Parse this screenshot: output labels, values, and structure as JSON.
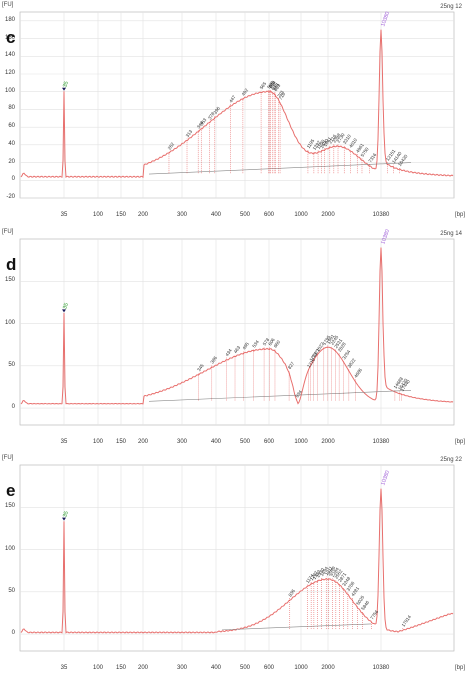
{
  "colors": {
    "trace": "#e8706e",
    "peak_line": "#e03a3a",
    "label": "#333333",
    "lower_marker": "#2a9a2a",
    "upper_marker": "#a060d8",
    "grid": "#e2e2e2"
  },
  "chart_data": [
    {
      "type": "line",
      "panel_label": "c",
      "y_unit_label": "[FU]",
      "x_unit_label": "[bp]",
      "sample": "25ng 12",
      "ylim": [
        -20,
        190
      ],
      "yticks": [
        -20,
        0,
        20,
        40,
        60,
        80,
        100,
        120,
        140,
        160,
        180
      ],
      "xticks": [
        "35",
        "100",
        "150",
        "200",
        "300",
        "400",
        "500",
        "600",
        "1000",
        "2000",
        "10380"
      ],
      "grid": true,
      "markers": {
        "lower": {
          "x": "35",
          "label": "35",
          "height": 100
        },
        "upper": {
          "x": "10380",
          "label": "10380",
          "height": 170
        }
      },
      "smear": {
        "start": "200",
        "peak_x": "600",
        "peak_y": 100,
        "end": "1000",
        "second_peak_x": "2000",
        "second_peak_y": 42
      },
      "baseline_fu": 4,
      "peak_labels": [
        "262",
        "313",
        "344",
        "353",
        "378",
        "396",
        "447",
        "492",
        "565",
        "598",
        "608",
        "614",
        "635",
        "651",
        "663",
        "701",
        "716",
        "1195",
        "1392",
        "1550",
        "1690",
        "1841",
        "2116",
        "2398",
        "2730",
        "3310",
        "4010",
        "4961",
        "5750",
        "7316",
        "12151",
        "14140",
        "16420"
      ]
    },
    {
      "type": "line",
      "panel_label": "d",
      "y_unit_label": "[FU]",
      "x_unit_label": "[bp]",
      "sample": "25ng 14",
      "ylim": [
        -20,
        200
      ],
      "yticks": [
        0,
        50,
        100,
        150
      ],
      "xticks": [
        "35",
        "100",
        "150",
        "200",
        "300",
        "400",
        "500",
        "600",
        "1000",
        "2000",
        "10380"
      ],
      "grid": true,
      "markers": {
        "lower": {
          "x": "35",
          "label": "35",
          "height": 112
        },
        "upper": {
          "x": "10380",
          "label": "10380",
          "height": 190
        }
      },
      "smear": {
        "start": "200",
        "peak_x": "600",
        "peak_y": 70,
        "end": "1000",
        "second_peak_x": "2000",
        "second_peak_y": 72
      },
      "baseline_fu": 5,
      "peak_labels": [
        "345",
        "386",
        "434",
        "463",
        "495",
        "534",
        "578",
        "606",
        "660",
        "827",
        "934",
        "1210",
        "1283",
        "1371",
        "1522",
        "1795",
        "1991",
        "2245",
        "2531",
        "2828",
        "3254",
        "3822",
        "4686",
        "14688",
        "16420",
        "17440"
      ]
    },
    {
      "type": "line",
      "panel_label": "e",
      "y_unit_label": "[FU]",
      "x_unit_label": "[bp]",
      "sample": "25ng 22",
      "ylim": [
        -20,
        200
      ],
      "yticks": [
        0,
        50,
        100,
        150
      ],
      "xticks": [
        "35",
        "100",
        "150",
        "200",
        "300",
        "400",
        "500",
        "600",
        "1000",
        "2000",
        "10380"
      ],
      "grid": true,
      "markers": {
        "lower": {
          "x": "35",
          "label": "35",
          "height": 133
        },
        "upper": {
          "x": "10380",
          "label": "10380",
          "height": 172
        }
      },
      "smear": {
        "start": "400",
        "peak_x": "2000",
        "peak_y": 65,
        "end": "10380"
      },
      "baseline_fu": 2,
      "peak_labels": [
        "836",
        "1174",
        "1297",
        "1392",
        "1530",
        "1694",
        "1911",
        "2049",
        "2284",
        "2552",
        "2871",
        "3248",
        "3706",
        "4281",
        "5025",
        "5846",
        "7756",
        "17914"
      ]
    }
  ]
}
